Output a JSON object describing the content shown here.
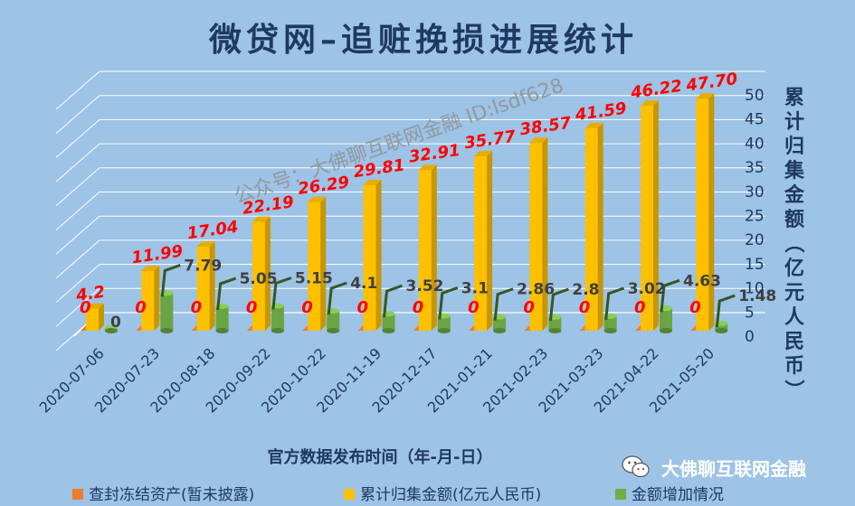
{
  "chart_data": {
    "type": "bar",
    "title": "微贷网–追赃挽损进展统计",
    "xlabel": "官方数据发布时间（年-月-日）",
    "ylabel": "累计归集金额（亿元人民币）",
    "ylim": [
      0,
      50
    ],
    "ytick_step": 5,
    "categories": [
      "2020-07-06",
      "2020-07-23",
      "2020-08-18",
      "2020-09-22",
      "2020-10-22",
      "2020-11-19",
      "2020-12-17",
      "2021-01-21",
      "2021-02-23",
      "2021-03-23",
      "2021-04-22",
      "2021-05-20"
    ],
    "series": [
      {
        "name": "查封冻结资产(暂未披露)",
        "color": "#ed7d31",
        "values": [
          0,
          0,
          0,
          0,
          0,
          0,
          0,
          0,
          0,
          0,
          0,
          0
        ],
        "labels": [
          "0",
          "0",
          "0",
          "0",
          "0",
          "0",
          "0",
          "0",
          "0",
          "0",
          "0",
          "0"
        ]
      },
      {
        "name": "累计归集金额(亿元人民币)",
        "color": "#ffc000",
        "values": [
          4.2,
          11.99,
          17.04,
          22.19,
          26.29,
          29.81,
          32.91,
          35.77,
          38.57,
          41.59,
          46.22,
          47.7
        ],
        "labels": [
          "4.2",
          "11.99",
          "17.04",
          "22.19",
          "26.29",
          "29.81",
          "32.91",
          "35.77",
          "38.57",
          "41.59",
          "46.22",
          "47.70"
        ]
      },
      {
        "name": "金额增加情况",
        "color": "#70ad47",
        "values": [
          0,
          7.79,
          5.05,
          5.15,
          4.1,
          3.52,
          3.1,
          2.86,
          2.8,
          3.02,
          4.63,
          1.48
        ],
        "labels": [
          "0",
          "7.79",
          "5.05",
          "5.15",
          "4.1",
          "3.52",
          "3.1",
          "2.86",
          "2.8",
          "3.02",
          "4.63",
          "1.48"
        ]
      }
    ],
    "grid": true,
    "legend_position": "bottom"
  },
  "watermark": "公众号：大佛聊互联网金融  ID:lsdf628",
  "brand": {
    "name": "大佛聊互联网金融",
    "icon": "wechat-icon"
  },
  "colors": {
    "background": "#9dc3e6",
    "title": "#1f3864",
    "label_red": "#ff0000",
    "label_dark": "#404040"
  }
}
